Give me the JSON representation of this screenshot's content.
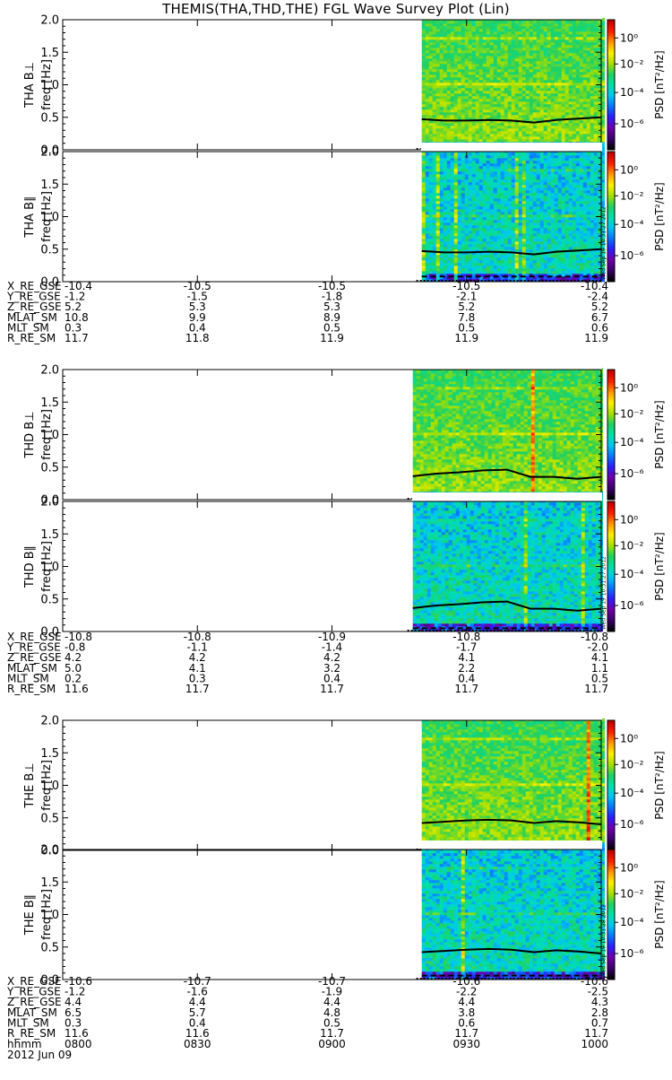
{
  "title": "THEMIS(THA,THD,THE) FGL Wave Survey Plot (Lin)",
  "colors": {
    "background": "#ffffff",
    "axes": "#000000",
    "colorbar": [
      "#000000",
      "#3b006b",
      "#7000a8",
      "#2a1cff",
      "#0a74ff",
      "#00c8f0",
      "#00e0a8",
      "#20d060",
      "#a8e000",
      "#fff000",
      "#ff9800",
      "#ff2000",
      "#c00000"
    ]
  },
  "chart_data": {
    "type": "heatmap",
    "x_axis": {
      "label_rows": [
        {
          "label": "hhmm",
          "values": [
            "0800",
            "0830",
            "0900",
            "0930",
            "1000"
          ]
        },
        {
          "label": "2012 Jun 09",
          "values": []
        }
      ]
    },
    "panels": [
      {
        "label": "THA B⊥",
        "probe": "THA",
        "component": "perp",
        "ylabel": "freq [Hz]",
        "ylim": [
          0,
          2.0
        ],
        "yticks": [
          "0.0",
          "0.5",
          "1.0",
          "1.5",
          "2.0"
        ],
        "data_start_hhmm": "0920",
        "cb_label": "PSD [nT²/Hz]",
        "cb_ticks": [
          "10⁰",
          "10⁻²",
          "10⁻⁴",
          "10⁻⁶"
        ],
        "solid_line": [
          0.47,
          0.45,
          0.45,
          0.46,
          0.45,
          0.42,
          0.46,
          0.48,
          0.5
        ],
        "dashed_line": 0.08,
        "stamp": ""
      },
      {
        "label": "THA B∥",
        "probe": "THA",
        "component": "par",
        "ylabel": "freq [Hz]",
        "ylim": [
          0,
          2.0
        ],
        "yticks": [
          "0.0",
          "0.5",
          "1.0",
          "1.5",
          "2.0"
        ],
        "data_start_hhmm": "0920",
        "cb_label": "PSD [nT²/Hz]",
        "cb_ticks": [
          "10⁰",
          "10⁻²",
          "10⁻⁴",
          "10⁻⁶"
        ],
        "solid_line": [
          0.47,
          0.45,
          0.45,
          0.46,
          0.45,
          0.42,
          0.46,
          0.48,
          0.5
        ],
        "dashed_line": 0.08,
        "stamp": "Wed Sep 19 10:31:27 2012"
      },
      {
        "label": "THD B⊥",
        "probe": "THD",
        "component": "perp",
        "ylabel": "freq [Hz]",
        "ylim": [
          0,
          2.0
        ],
        "yticks": [
          "0.0",
          "0.5",
          "1.0",
          "1.5",
          "2.0"
        ],
        "data_start_hhmm": "0918",
        "cb_label": "PSD [nT²/Hz]",
        "cb_ticks": [
          "10⁰",
          "10⁻²",
          "10⁻⁴",
          "10⁻⁶"
        ],
        "solid_line": [
          0.36,
          0.4,
          0.42,
          0.45,
          0.46,
          0.35,
          0.35,
          0.32,
          0.35
        ],
        "dashed_line": 0.05,
        "stamp": ""
      },
      {
        "label": "THD B∥",
        "probe": "THD",
        "component": "par",
        "ylabel": "freq [Hz]",
        "ylim": [
          0,
          2.0
        ],
        "yticks": [
          "0.0",
          "0.5",
          "1.0",
          "1.5",
          "2.0"
        ],
        "data_start_hhmm": "0918",
        "cb_label": "PSD [nT²/Hz]",
        "cb_ticks": [
          "10⁰",
          "10⁻²",
          "10⁻⁴",
          "10⁻⁶"
        ],
        "solid_line": [
          0.36,
          0.4,
          0.42,
          0.45,
          0.46,
          0.35,
          0.35,
          0.32,
          0.35
        ],
        "dashed_line": 0.05,
        "stamp": "Wed Sep 19 10:31:27 2012"
      },
      {
        "label": "THE B⊥",
        "probe": "THE",
        "component": "perp",
        "ylabel": "freq [Hz]",
        "ylim": [
          0,
          2.0
        ],
        "yticks": [
          "0.0",
          "0.5",
          "1.0",
          "1.5",
          "2.0"
        ],
        "data_start_hhmm": "0920",
        "cb_label": "PSD [nT²/Hz]",
        "cb_ticks": [
          "10⁰",
          "10⁻²",
          "10⁻⁴",
          "10⁻⁶"
        ],
        "solid_line": [
          0.42,
          0.44,
          0.46,
          0.47,
          0.46,
          0.42,
          0.45,
          0.43,
          0.4
        ],
        "dashed_line": 0.06,
        "stamp": ""
      },
      {
        "label": "THE B∥",
        "probe": "THE",
        "component": "par",
        "ylabel": "freq [Hz]",
        "ylim": [
          0,
          2.0
        ],
        "yticks": [
          "0.0",
          "0.5",
          "1.0",
          "1.5",
          "2.0"
        ],
        "data_start_hhmm": "0920",
        "cb_label": "PSD [nT²/Hz]",
        "cb_ticks": [
          "10⁰",
          "10⁻²",
          "10⁻⁴",
          "10⁻⁶"
        ],
        "solid_line": [
          0.42,
          0.44,
          0.46,
          0.47,
          0.46,
          0.42,
          0.45,
          0.43,
          0.4
        ],
        "dashed_line": 0.06,
        "stamp": "Wed Sep 19 10:31:28 2012"
      }
    ],
    "ephemeris": [
      {
        "probe": "THA",
        "rows": [
          {
            "label": "X_RE_GSE",
            "values": [
              "-10.4",
              "-10.5",
              "-10.5",
              "-10.5",
              "-10.4"
            ]
          },
          {
            "label": "Y_RE_GSE",
            "values": [
              "-1.2",
              "-1.5",
              "-1.8",
              "-2.1",
              "-2.4"
            ]
          },
          {
            "label": "Z_RE_GSE",
            "values": [
              "5.2",
              "5.3",
              "5.3",
              "5.2",
              "5.2"
            ]
          },
          {
            "label": "MLAT_SM",
            "values": [
              "10.8",
              "9.9",
              "8.9",
              "7.8",
              "6.7"
            ]
          },
          {
            "label": "MLT_SM",
            "values": [
              "0.3",
              "0.4",
              "0.5",
              "0.5",
              "0.6"
            ]
          },
          {
            "label": "R_RE_SM",
            "values": [
              "11.7",
              "11.8",
              "11.9",
              "11.9",
              "11.9"
            ]
          }
        ]
      },
      {
        "probe": "THD",
        "rows": [
          {
            "label": "X_RE_GSE",
            "values": [
              "-10.8",
              "-10.8",
              "-10.9",
              "-10.8",
              "-10.8"
            ]
          },
          {
            "label": "Y_RE_GSE",
            "values": [
              "-0.8",
              "-1.1",
              "-1.4",
              "-1.7",
              "-2.0"
            ]
          },
          {
            "label": "Z_RE_GSE",
            "values": [
              "4.2",
              "4.2",
              "4.2",
              "4.1",
              "4.1"
            ]
          },
          {
            "label": "MLAT_SM",
            "values": [
              "5.0",
              "4.1",
              "3.2",
              "2.2",
              "1.1"
            ]
          },
          {
            "label": "MLT_SM",
            "values": [
              "0.2",
              "0.3",
              "0.4",
              "0.4",
              "0.5"
            ]
          },
          {
            "label": "R_RE_SM",
            "values": [
              "11.6",
              "11.7",
              "11.7",
              "11.7",
              "11.7"
            ]
          }
        ]
      },
      {
        "probe": "THE",
        "rows": [
          {
            "label": "X_RE_GSE",
            "values": [
              "-10.6",
              "-10.7",
              "-10.7",
              "-10.6",
              "-10.6"
            ]
          },
          {
            "label": "Y_RE_GSE",
            "values": [
              "-1.2",
              "-1.6",
              "-1.9",
              "-2.2",
              "-2.5"
            ]
          },
          {
            "label": "Z_RE_GSE",
            "values": [
              "4.4",
              "4.4",
              "4.4",
              "4.4",
              "4.3"
            ]
          },
          {
            "label": "MLAT_SM",
            "values": [
              "6.5",
              "5.7",
              "4.8",
              "3.8",
              "2.8"
            ]
          },
          {
            "label": "MLT_SM",
            "values": [
              "0.3",
              "0.4",
              "0.5",
              "0.6",
              "0.7"
            ]
          },
          {
            "label": "R_RE_SM",
            "values": [
              "11.6",
              "11.6",
              "11.7",
              "11.7",
              "11.7"
            ]
          }
        ]
      }
    ]
  }
}
